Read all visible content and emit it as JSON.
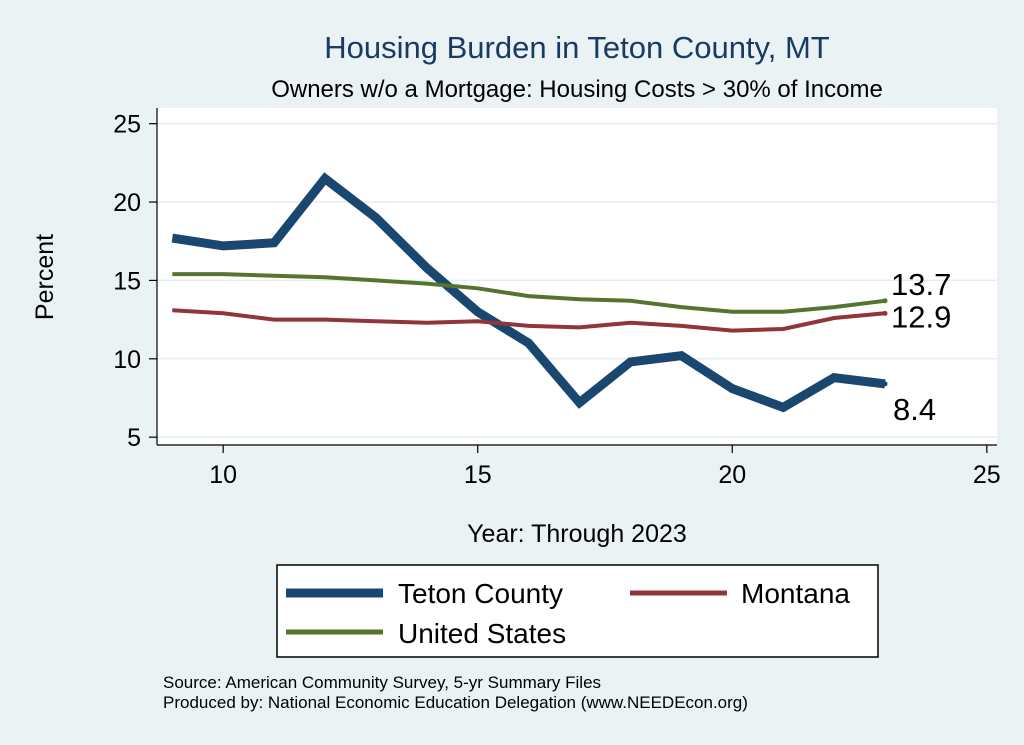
{
  "chart_data": {
    "type": "line",
    "title": "Housing Burden in Teton County, MT",
    "subtitle": "Owners w/o a Mortgage: Housing Costs > 30% of Income",
    "xlabel": "Year: Through 2023",
    "ylabel": "Percent",
    "xlim": [
      8.7,
      25.2
    ],
    "ylim": [
      4.5,
      26.0
    ],
    "xticks": [
      10,
      15,
      20,
      25
    ],
    "yticks": [
      5,
      10,
      15,
      20,
      25
    ],
    "grid": "horizontal",
    "legend_position": "bottom",
    "x": [
      9,
      10,
      11,
      12,
      13,
      14,
      15,
      16,
      17,
      18,
      19,
      20,
      21,
      22,
      23
    ],
    "series": [
      {
        "name": "Teton County",
        "color": "#1a476f",
        "width": 9,
        "values": [
          17.7,
          17.2,
          17.4,
          21.5,
          19.0,
          15.8,
          13.0,
          11.0,
          7.2,
          9.8,
          10.2,
          8.1,
          6.9,
          8.8,
          8.4
        ],
        "end_label": "8.4"
      },
      {
        "name": "Montana",
        "color": "#90353b",
        "width": 4,
        "values": [
          13.1,
          12.9,
          12.5,
          12.5,
          12.4,
          12.3,
          12.4,
          12.1,
          12.0,
          12.3,
          12.1,
          11.8,
          11.9,
          12.6,
          12.9
        ],
        "end_label": "12.9"
      },
      {
        "name": "United States",
        "color": "#55752f",
        "width": 4,
        "values": [
          15.4,
          15.4,
          15.3,
          15.2,
          15.0,
          14.8,
          14.5,
          14.0,
          13.8,
          13.7,
          13.3,
          13.0,
          13.0,
          13.3,
          13.7
        ],
        "end_label": "13.7"
      }
    ]
  },
  "source_lines": [
    "Source: American Community Survey, 5-yr Summary Files",
    "Produced by: National Economic Education Delegation (www.NEEDEcon.org)"
  ]
}
